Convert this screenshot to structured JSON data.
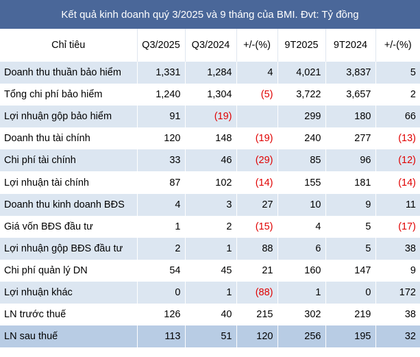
{
  "header": {
    "title": "Kết quả kinh doanh quý 3/2025 và 9 tháng của BMI. Đvt: Tỷ đồng"
  },
  "table": {
    "columns": [
      "Chỉ tiêu",
      "Q3/2025",
      "Q3/2024",
      "+/-(%)",
      "9T2025",
      "9T2024",
      "+/-(%)"
    ],
    "rows": [
      [
        "Doanh thu thuần bảo hiểm",
        "1,331",
        "1,284",
        "4",
        "4,021",
        "3,837",
        "5"
      ],
      [
        "Tổng chi phí bảo hiểm",
        "1,240",
        "1,304",
        "(5)",
        "3,722",
        "3,657",
        "2"
      ],
      [
        "Lợi nhuận gộp  bảo hiểm",
        "91",
        "(19)",
        null,
        "299",
        "180",
        "66"
      ],
      [
        "Doanh thu tài chính",
        "120",
        "148",
        "(19)",
        "240",
        "277",
        "(13)"
      ],
      [
        "Chi phí tài chính",
        "33",
        "46",
        "(29)",
        "85",
        "96",
        "(12)"
      ],
      [
        "Lợi nhuận tài chính",
        "87",
        "102",
        "(14)",
        "155",
        "181",
        "(14)"
      ],
      [
        "Doanh thu kinh doanh BĐS",
        "4",
        "3",
        "27",
        "10",
        "9",
        "11"
      ],
      [
        "Giá vốn BĐS đầu tư",
        "1",
        "2",
        "(15)",
        "4",
        "5",
        "(17)"
      ],
      [
        "Lợi nhuận gộp BĐS đầu tư",
        "2",
        "1",
        "88",
        "6",
        "5",
        "38"
      ],
      [
        "Chi phí quản lý DN",
        "54",
        "45",
        "21",
        "160",
        "147",
        "9"
      ],
      [
        "Lợi nhuận khác",
        "0",
        "1",
        "(88)",
        "1",
        "0",
        "172"
      ],
      [
        "LN trước thuế",
        "126",
        "40",
        "215",
        "302",
        "219",
        "38"
      ],
      [
        "LN sau thuế",
        "113",
        "51",
        "120",
        "256",
        "195",
        "32"
      ]
    ]
  }
}
